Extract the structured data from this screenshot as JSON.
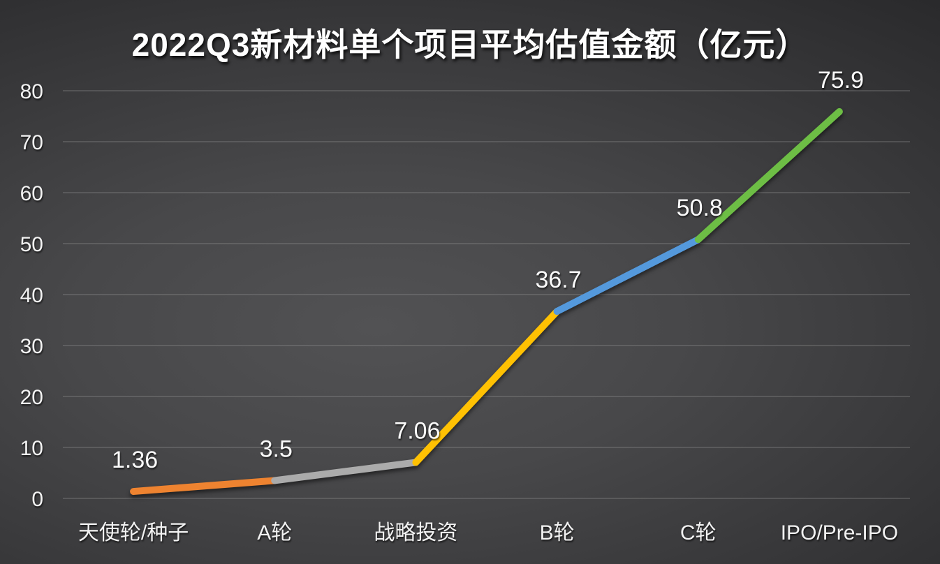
{
  "chart_data": {
    "type": "line",
    "title": "2022Q3新材料单个项目平均估值金额（亿元）",
    "categories": [
      "天使轮/种子",
      "A轮",
      "战略投资",
      "B轮",
      "C轮",
      "IPO/Pre-IPO"
    ],
    "values": [
      1.36,
      3.5,
      7.06,
      36.7,
      50.8,
      75.9
    ],
    "data_labels": [
      "1.36",
      "3.5",
      "7.06",
      "36.7",
      "50.8",
      "75.9"
    ],
    "segment_colors": [
      "#EE8330",
      "#ABABAB",
      "#FFC103",
      "#5499DC",
      "#6DBE45"
    ],
    "ylim": [
      0,
      80
    ],
    "ytick_step": 10,
    "yticks": [
      "0",
      "10",
      "20",
      "30",
      "40",
      "50",
      "60",
      "70",
      "80"
    ],
    "xlabel": "",
    "ylabel": "",
    "grid": true,
    "legend": "none",
    "text_color": "#f2f2f2",
    "background_center": "#525254",
    "background_edge": "#212123"
  }
}
